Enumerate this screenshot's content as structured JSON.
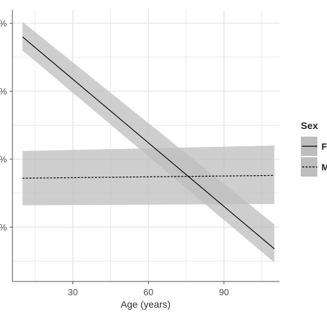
{
  "chart_data": {
    "type": "line",
    "xlabel": "Age (years)",
    "ylabel": "",
    "x_ticks": [
      30,
      60,
      90
    ],
    "y_tick_labels": [
      "%",
      "%",
      "%",
      "%"
    ],
    "xlim": [
      6,
      112
    ],
    "ylim": [
      0,
      1
    ],
    "grid": true,
    "legend": {
      "title": "Sex",
      "position": "right",
      "entries": [
        {
          "label": "F",
          "line_style": "solid"
        },
        {
          "label": "M",
          "line_style": "dashed"
        }
      ]
    },
    "series": [
      {
        "name": "F",
        "line_style": "solid",
        "color": "#000000",
        "band_color": "#bdbdbd",
        "x": [
          10,
          110
        ],
        "y": [
          0.9,
          0.12
        ],
        "lower": [
          0.85,
          0.07
        ],
        "upper": [
          0.955,
          0.21
        ]
      },
      {
        "name": "M",
        "line_style": "dashed",
        "color": "#000000",
        "band_color": "#bdbdbd",
        "x": [
          10,
          110
        ],
        "y": [
          0.38,
          0.39
        ],
        "lower": [
          0.28,
          0.285
        ],
        "upper": [
          0.48,
          0.5
        ]
      }
    ]
  },
  "colors": {
    "panel_background": "#ffffff",
    "grid": "#e6e6e6",
    "axis": "#4d4d4d",
    "band": "#bdbdbd"
  }
}
